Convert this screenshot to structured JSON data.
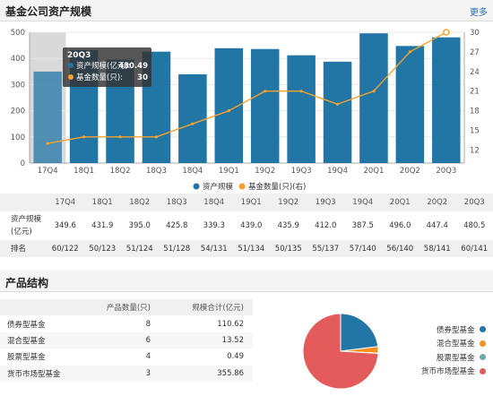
{
  "header": {
    "title": "基金公司资产规模",
    "more_label": "更多"
  },
  "chart_data": {
    "type": "bar",
    "categories": [
      "17Q4",
      "18Q1",
      "18Q2",
      "18Q3",
      "18Q4",
      "19Q1",
      "19Q2",
      "19Q3",
      "19Q4",
      "20Q1",
      "20Q2",
      "20Q3"
    ],
    "series": [
      {
        "name": "资产规模",
        "type": "bar",
        "axis": "left",
        "values": [
          349.6,
          431.9,
          395.0,
          425.8,
          339.3,
          439.0,
          435.9,
          412.0,
          387.5,
          496.0,
          447.4,
          480.5
        ]
      },
      {
        "name": "基金数量(只)(右)",
        "type": "line",
        "axis": "right",
        "values": [
          13,
          14,
          14,
          14,
          16,
          18,
          21,
          21,
          19,
          21,
          27,
          30
        ]
      }
    ],
    "ylim_left": [
      0,
      500
    ],
    "yticks_left": [
      0,
      100,
      200,
      300,
      400,
      500
    ],
    "ylim_right": [
      10,
      30
    ],
    "yticks_right": [
      12,
      15,
      18,
      21,
      24,
      27,
      30
    ],
    "legend_position": "bottom",
    "tooltip": {
      "title": "20Q3",
      "rows": [
        {
          "label": "资产规模(亿元):",
          "value": "480.49"
        },
        {
          "label": "基金数量(只):",
          "value": "30"
        }
      ]
    },
    "colors": {
      "bar": "#2276a6",
      "line": "#f6a22b",
      "highlight": "#d9d9d9"
    }
  },
  "scale_table": {
    "header": [
      "",
      "17Q4",
      "18Q1",
      "18Q2",
      "18Q3",
      "18Q4",
      "19Q1",
      "19Q2",
      "19Q3",
      "19Q4",
      "20Q1",
      "20Q2",
      "20Q3"
    ],
    "scale_label": "资产规模(亿元)",
    "scale": [
      "349.6",
      "431.9",
      "395.0",
      "425.8",
      "339.3",
      "439.0",
      "435.9",
      "412.0",
      "387.5",
      "496.0",
      "447.4",
      "480.5"
    ],
    "rank_label": "排名",
    "rank": [
      "60/122",
      "50/123",
      "51/124",
      "51/128",
      "54/131",
      "51/134",
      "50/135",
      "55/137",
      "57/140",
      "56/140",
      "58/141",
      "60/141"
    ]
  },
  "products": {
    "title": "产品结构",
    "columns": [
      "",
      "产品数量(只)",
      "规模合计(亿元)"
    ],
    "rows": [
      {
        "name": "债券型基金",
        "count": "8",
        "size": "110.62",
        "value": 110.62,
        "color": "#2276a6"
      },
      {
        "name": "混合型基金",
        "count": "6",
        "size": "13.52",
        "value": 13.52,
        "color": "#f6901e"
      },
      {
        "name": "股票型基金",
        "count": "4",
        "size": "0.49",
        "value": 0.49,
        "color": "#6aa8b2"
      },
      {
        "name": "货币市场型基金",
        "count": "3",
        "size": "355.86",
        "value": 355.86,
        "color": "#e35b5b"
      }
    ]
  }
}
